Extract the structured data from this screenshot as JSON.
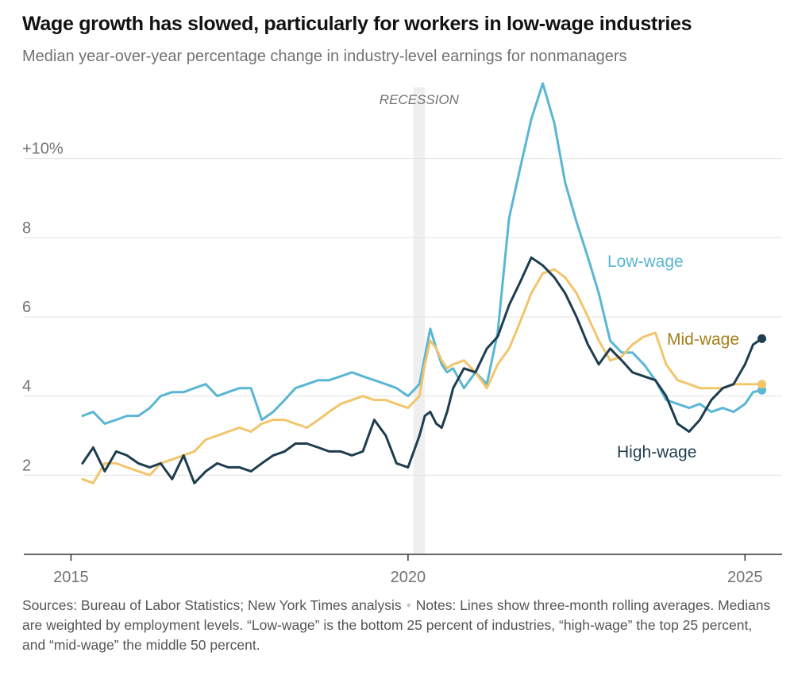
{
  "header": {
    "title": "Wage growth has slowed, particularly for workers in low-wage industries",
    "subtitle": "Median year-over-year percentage change in industry-level earnings for nonmanagers"
  },
  "chart_data": {
    "type": "line",
    "title": "Wage growth has slowed, particularly for workers in low-wage industries",
    "subtitle": "Median year-over-year percentage change in industry-level earnings for nonmanagers",
    "xlabel": "",
    "ylabel": "",
    "xlim": [
      2014.3,
      2025.55
    ],
    "ylim": [
      0,
      12
    ],
    "y_ticks": [
      {
        "value": 10,
        "label": "+10%"
      },
      {
        "value": 8,
        "label": "8"
      },
      {
        "value": 6,
        "label": "6"
      },
      {
        "value": 4,
        "label": "4"
      },
      {
        "value": 2,
        "label": "2"
      }
    ],
    "x_ticks": [
      {
        "value": 2015,
        "label": "2015"
      },
      {
        "value": 2020,
        "label": "2020"
      },
      {
        "value": 2025,
        "label": "2025"
      }
    ],
    "grid": true,
    "recession": {
      "label": "RECESSION",
      "start": 2020.08,
      "end": 2020.25
    },
    "series": [
      {
        "name": "Low-wage",
        "color": "#5ab6d3",
        "x": [
          2015.17,
          2015.33,
          2015.5,
          2015.67,
          2015.83,
          2016.0,
          2016.17,
          2016.33,
          2016.5,
          2016.67,
          2016.83,
          2017.0,
          2017.17,
          2017.33,
          2017.5,
          2017.67,
          2017.83,
          2018.0,
          2018.17,
          2018.33,
          2018.5,
          2018.67,
          2018.83,
          2019.0,
          2019.17,
          2019.33,
          2019.5,
          2019.67,
          2019.83,
          2020.0,
          2020.17,
          2020.25,
          2020.33,
          2020.42,
          2020.5,
          2020.58,
          2020.67,
          2020.83,
          2021.0,
          2021.17,
          2021.33,
          2021.5,
          2021.67,
          2021.83,
          2022.0,
          2022.17,
          2022.33,
          2022.5,
          2022.67,
          2022.83,
          2023.0,
          2023.17,
          2023.33,
          2023.5,
          2023.67,
          2023.83,
          2024.0,
          2024.17,
          2024.33,
          2024.5,
          2024.67,
          2024.83,
          2025.0,
          2025.12,
          2025.25
        ],
        "y": [
          3.5,
          3.6,
          3.3,
          3.4,
          3.5,
          3.5,
          3.7,
          4.0,
          4.1,
          4.1,
          4.2,
          4.3,
          4.0,
          4.1,
          4.2,
          4.2,
          3.4,
          3.6,
          3.9,
          4.2,
          4.3,
          4.4,
          4.4,
          4.5,
          4.6,
          4.5,
          4.4,
          4.3,
          4.2,
          4.0,
          4.3,
          5.0,
          5.7,
          5.2,
          4.8,
          4.6,
          4.7,
          4.2,
          4.6,
          4.3,
          5.6,
          8.5,
          9.8,
          11.0,
          11.9,
          10.9,
          9.4,
          8.4,
          7.5,
          6.6,
          5.4,
          5.1,
          5.1,
          4.8,
          4.4,
          3.9,
          3.8,
          3.7,
          3.8,
          3.6,
          3.7,
          3.6,
          3.8,
          4.1,
          4.15
        ]
      },
      {
        "name": "Mid-wage",
        "color": "#f2c56d",
        "label_color": "#a57f1a",
        "x": [
          2015.17,
          2015.33,
          2015.5,
          2015.67,
          2015.83,
          2016.0,
          2016.17,
          2016.33,
          2016.5,
          2016.67,
          2016.83,
          2017.0,
          2017.17,
          2017.33,
          2017.5,
          2017.67,
          2017.83,
          2018.0,
          2018.17,
          2018.33,
          2018.5,
          2018.67,
          2018.83,
          2019.0,
          2019.17,
          2019.33,
          2019.5,
          2019.67,
          2019.83,
          2020.0,
          2020.17,
          2020.25,
          2020.33,
          2020.42,
          2020.5,
          2020.58,
          2020.67,
          2020.83,
          2021.0,
          2021.17,
          2021.33,
          2021.5,
          2021.67,
          2021.83,
          2022.0,
          2022.17,
          2022.33,
          2022.5,
          2022.67,
          2022.83,
          2023.0,
          2023.17,
          2023.33,
          2023.5,
          2023.67,
          2023.83,
          2024.0,
          2024.17,
          2024.33,
          2024.5,
          2024.67,
          2024.83,
          2025.0,
          2025.12,
          2025.25
        ],
        "y": [
          1.9,
          1.8,
          2.3,
          2.3,
          2.2,
          2.1,
          2.0,
          2.3,
          2.4,
          2.5,
          2.6,
          2.9,
          3.0,
          3.1,
          3.2,
          3.1,
          3.3,
          3.4,
          3.4,
          3.3,
          3.2,
          3.4,
          3.6,
          3.8,
          3.9,
          4.0,
          3.9,
          3.9,
          3.8,
          3.7,
          4.0,
          4.8,
          5.4,
          5.2,
          4.9,
          4.7,
          4.8,
          4.9,
          4.6,
          4.2,
          4.8,
          5.2,
          5.9,
          6.6,
          7.1,
          7.2,
          7.0,
          6.6,
          6.0,
          5.4,
          4.9,
          5.0,
          5.3,
          5.5,
          5.6,
          4.8,
          4.4,
          4.3,
          4.2,
          4.2,
          4.2,
          4.3,
          4.3,
          4.3,
          4.3
        ]
      },
      {
        "name": "High-wage",
        "color": "#1e3d4f",
        "x": [
          2015.17,
          2015.33,
          2015.5,
          2015.67,
          2015.83,
          2016.0,
          2016.17,
          2016.33,
          2016.5,
          2016.67,
          2016.83,
          2017.0,
          2017.17,
          2017.33,
          2017.5,
          2017.67,
          2017.83,
          2018.0,
          2018.17,
          2018.33,
          2018.5,
          2018.67,
          2018.83,
          2019.0,
          2019.17,
          2019.33,
          2019.5,
          2019.67,
          2019.83,
          2020.0,
          2020.17,
          2020.25,
          2020.33,
          2020.42,
          2020.5,
          2020.58,
          2020.67,
          2020.83,
          2021.0,
          2021.17,
          2021.33,
          2021.5,
          2021.67,
          2021.83,
          2022.0,
          2022.17,
          2022.33,
          2022.5,
          2022.67,
          2022.83,
          2023.0,
          2023.17,
          2023.33,
          2023.5,
          2023.67,
          2023.83,
          2024.0,
          2024.17,
          2024.33,
          2024.5,
          2024.67,
          2024.83,
          2025.0,
          2025.12,
          2025.25
        ],
        "y": [
          2.3,
          2.7,
          2.1,
          2.6,
          2.5,
          2.3,
          2.2,
          2.3,
          1.9,
          2.5,
          1.8,
          2.1,
          2.3,
          2.2,
          2.2,
          2.1,
          2.3,
          2.5,
          2.6,
          2.8,
          2.8,
          2.7,
          2.6,
          2.6,
          2.5,
          2.6,
          3.4,
          3.0,
          2.3,
          2.2,
          3.0,
          3.5,
          3.6,
          3.3,
          3.2,
          3.6,
          4.2,
          4.7,
          4.6,
          5.2,
          5.5,
          6.3,
          6.9,
          7.5,
          7.3,
          7.0,
          6.6,
          6.0,
          5.3,
          4.8,
          5.2,
          4.9,
          4.6,
          4.5,
          4.4,
          4.0,
          3.3,
          3.1,
          3.4,
          3.9,
          4.2,
          4.3,
          4.8,
          5.3,
          5.45
        ]
      }
    ],
    "annotations": [
      {
        "series": "Low-wage",
        "text": "Low-wage"
      },
      {
        "series": "Mid-wage",
        "text": "Mid-wage"
      },
      {
        "series": "High-wage",
        "text": "High-wage"
      }
    ]
  },
  "footer": {
    "sources": "Sources: Bureau of Labor Statistics; New York Times analysis",
    "separator": "•",
    "notes": "Notes: Lines show three-month rolling averages. Medians are weighted by employment levels. “Low-wage” is the bottom 25 percent of industries, “high-wage” the top 25 percent, and “mid-wage” the middle 50 percent."
  }
}
